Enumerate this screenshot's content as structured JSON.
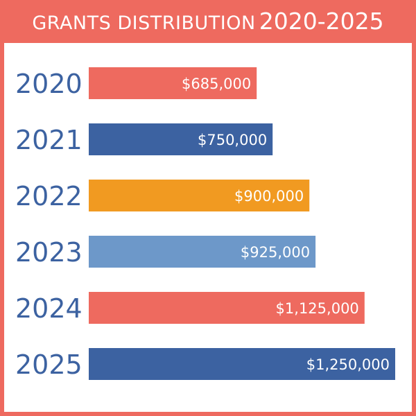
{
  "title": {
    "main": "GRANTS DISTRIBUTION",
    "years": "2020-2025"
  },
  "colors": {
    "coral": "#ee6a5f",
    "navy": "#3c62a1",
    "orange": "#f19a21",
    "light_blue": "#6d98c9"
  },
  "chart_data": {
    "type": "bar",
    "orientation": "horizontal",
    "title": "GRANTS DISTRIBUTION 2020-2025",
    "xlabel": "",
    "ylabel": "",
    "xlim": [
      0,
      1250000
    ],
    "grid": false,
    "legend": "none",
    "categories": [
      "2020",
      "2021",
      "2022",
      "2023",
      "2024",
      "2025"
    ],
    "values": [
      685000,
      750000,
      900000,
      925000,
      1125000,
      1250000
    ],
    "value_labels": [
      "$685,000",
      "$750,000",
      "$900,000",
      "$925,000",
      "$1,125,000",
      "$1,250,000"
    ],
    "bar_colors": [
      "#ee6a5f",
      "#3c62a1",
      "#f19a21",
      "#6d98c9",
      "#ee6a5f",
      "#3c62a1"
    ]
  }
}
